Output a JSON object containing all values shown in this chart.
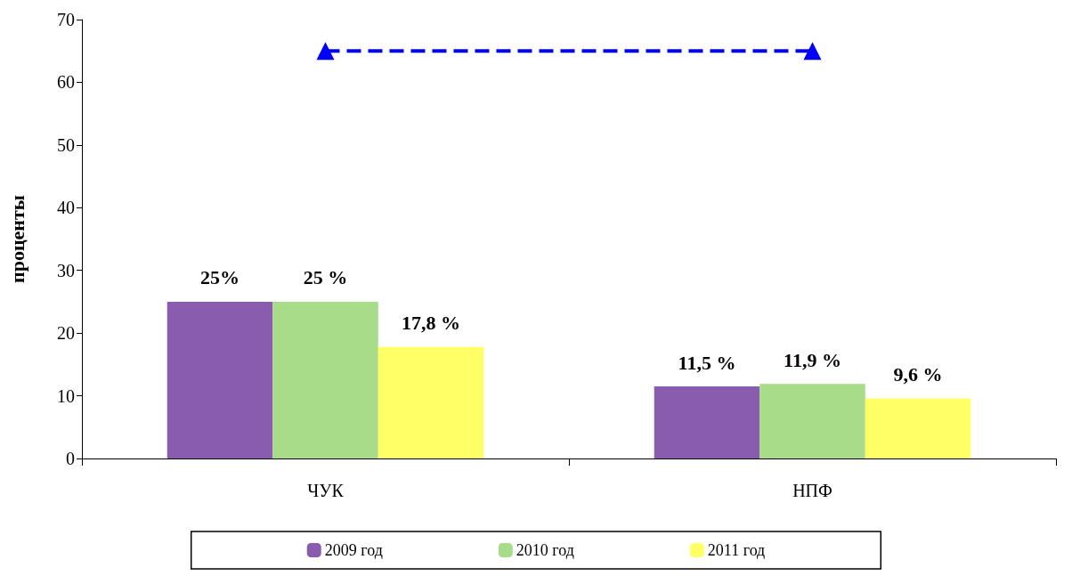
{
  "chart_data": {
    "type": "bar",
    "ylabel": "проценты",
    "categories": [
      "ЧУК",
      "НПФ"
    ],
    "series": [
      {
        "name": "2009 год",
        "color": "#8a5cb0",
        "values": [
          25,
          11.5
        ],
        "value_labels": [
          "25%",
          "11,5 %"
        ]
      },
      {
        "name": "2010 год",
        "color": "#a8dc88",
        "values": [
          25,
          11.9
        ],
        "value_labels": [
          "25 %",
          "11,9 %"
        ]
      },
      {
        "name": "2011 год",
        "color": "#ffff66",
        "values": [
          17.8,
          9.6
        ],
        "value_labels": [
          "17,8 %",
          "9,6 %"
        ]
      },
      {
        "type": "line",
        "color": "#0000ff",
        "values": [
          65,
          65
        ],
        "marker": "triangle",
        "line_style": "dashed"
      }
    ],
    "ylim": [
      0,
      70
    ],
    "yticks": [
      0,
      10,
      20,
      30,
      40,
      50,
      60,
      70
    ],
    "grid": false,
    "legend": "bottom"
  }
}
